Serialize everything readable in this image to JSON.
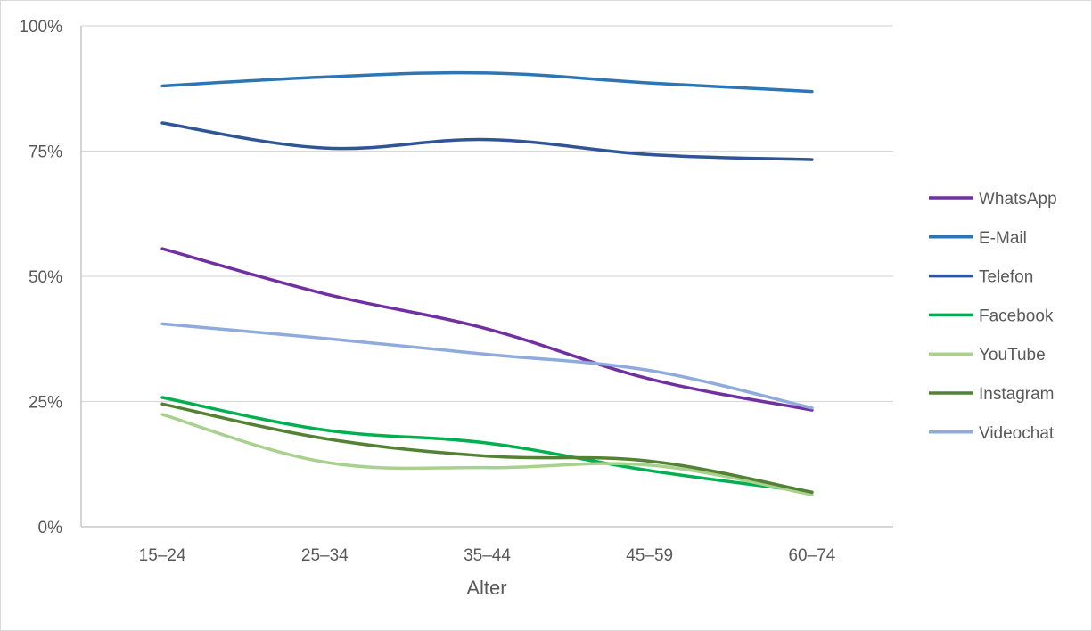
{
  "chart_data": {
    "type": "line",
    "categories": [
      "15–24",
      "25–34",
      "35–44",
      "45–59",
      "60–74"
    ],
    "y_ticks": [
      "0%",
      "25%",
      "50%",
      "75%",
      "100%"
    ],
    "ylim": [
      0,
      100
    ],
    "xlabel": "Alter",
    "ylabel": "",
    "grid": "horizontal",
    "legend_position": "right",
    "series": [
      {
        "name": "WhatsApp",
        "color": "#7030a0",
        "values": [
          55.5,
          46.5,
          39.5,
          29.5,
          23.3
        ]
      },
      {
        "name": "E-Mail",
        "color": "#2e75b6",
        "values": [
          88.0,
          89.8,
          90.6,
          88.6,
          86.9
        ]
      },
      {
        "name": "Telefon",
        "color": "#2f5597",
        "values": [
          80.6,
          75.6,
          77.3,
          74.3,
          73.3
        ]
      },
      {
        "name": "Facebook",
        "color": "#00b050",
        "values": [
          25.8,
          19.3,
          16.7,
          11.2,
          6.9
        ]
      },
      {
        "name": "YouTube",
        "color": "#a9d18e",
        "values": [
          22.4,
          12.9,
          11.8,
          12.3,
          6.4
        ]
      },
      {
        "name": "Instagram",
        "color": "#548235",
        "values": [
          24.5,
          17.6,
          14.1,
          13.1,
          6.9
        ]
      },
      {
        "name": "Videochat",
        "color": "#8faadc",
        "values": [
          40.5,
          37.6,
          34.4,
          31.2,
          23.7
        ]
      }
    ]
  }
}
